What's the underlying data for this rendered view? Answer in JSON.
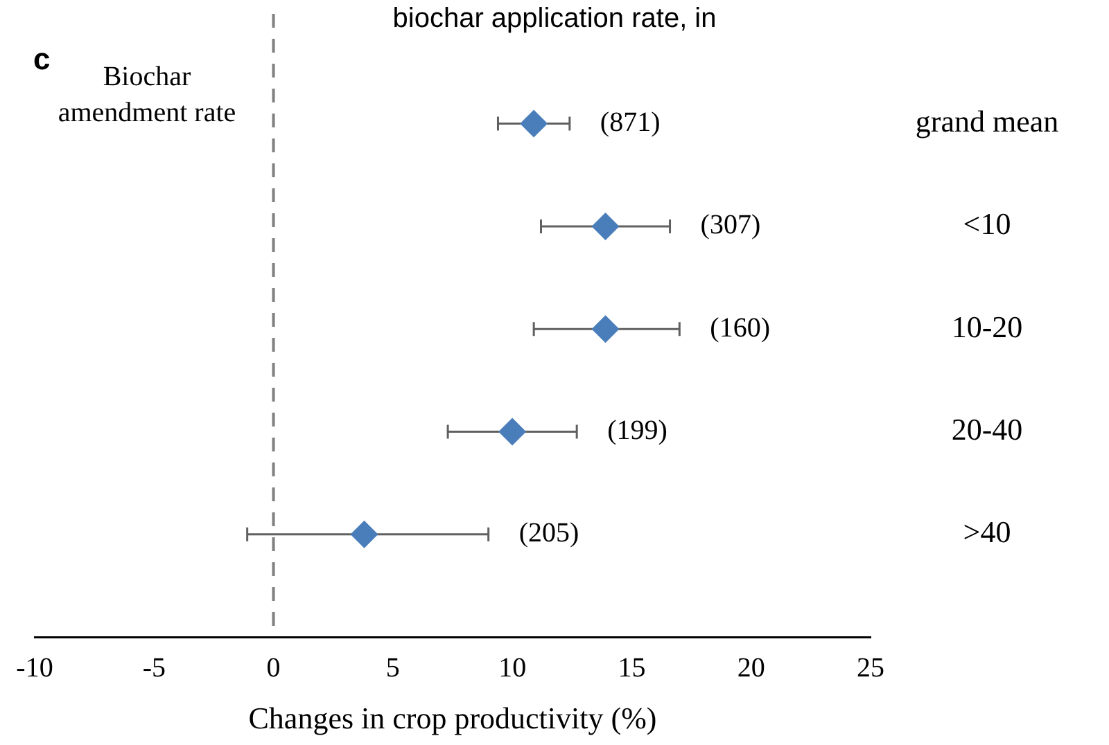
{
  "chart_data": {
    "type": "scatter",
    "orientation": "horizontal",
    "title": "biochar application rate, in",
    "xlabel": "Changes in crop productivity (%)",
    "categories": [
      "grand mean",
      "<10",
      "10-20",
      "20-40",
      ">40"
    ],
    "series": [
      {
        "color": "#4a7ebb",
        "values": [
          10.9,
          13.9,
          13.9,
          10.0,
          3.8
        ],
        "errors": [
          [
            9.4,
            12.4
          ],
          [
            11.2,
            16.6
          ],
          [
            10.9,
            17.0
          ],
          [
            7.3,
            12.7
          ],
          [
            -1.1,
            9.0
          ]
        ]
      }
    ],
    "xlim": [
      -10,
      25
    ],
    "xticks": [
      -10,
      -5,
      0,
      5,
      10,
      15,
      20,
      25
    ],
    "ref_lines": [
      {
        "axis": "x",
        "value": 0,
        "line_style": "dashed",
        "color": "#808080"
      }
    ],
    "annotations": [
      "c",
      "Biochar\namendment rate",
      "(871)",
      "(307)",
      "(160)",
      "(199)",
      "(205)"
    ],
    "marker": "diamond",
    "grid": false,
    "legend": false
  }
}
